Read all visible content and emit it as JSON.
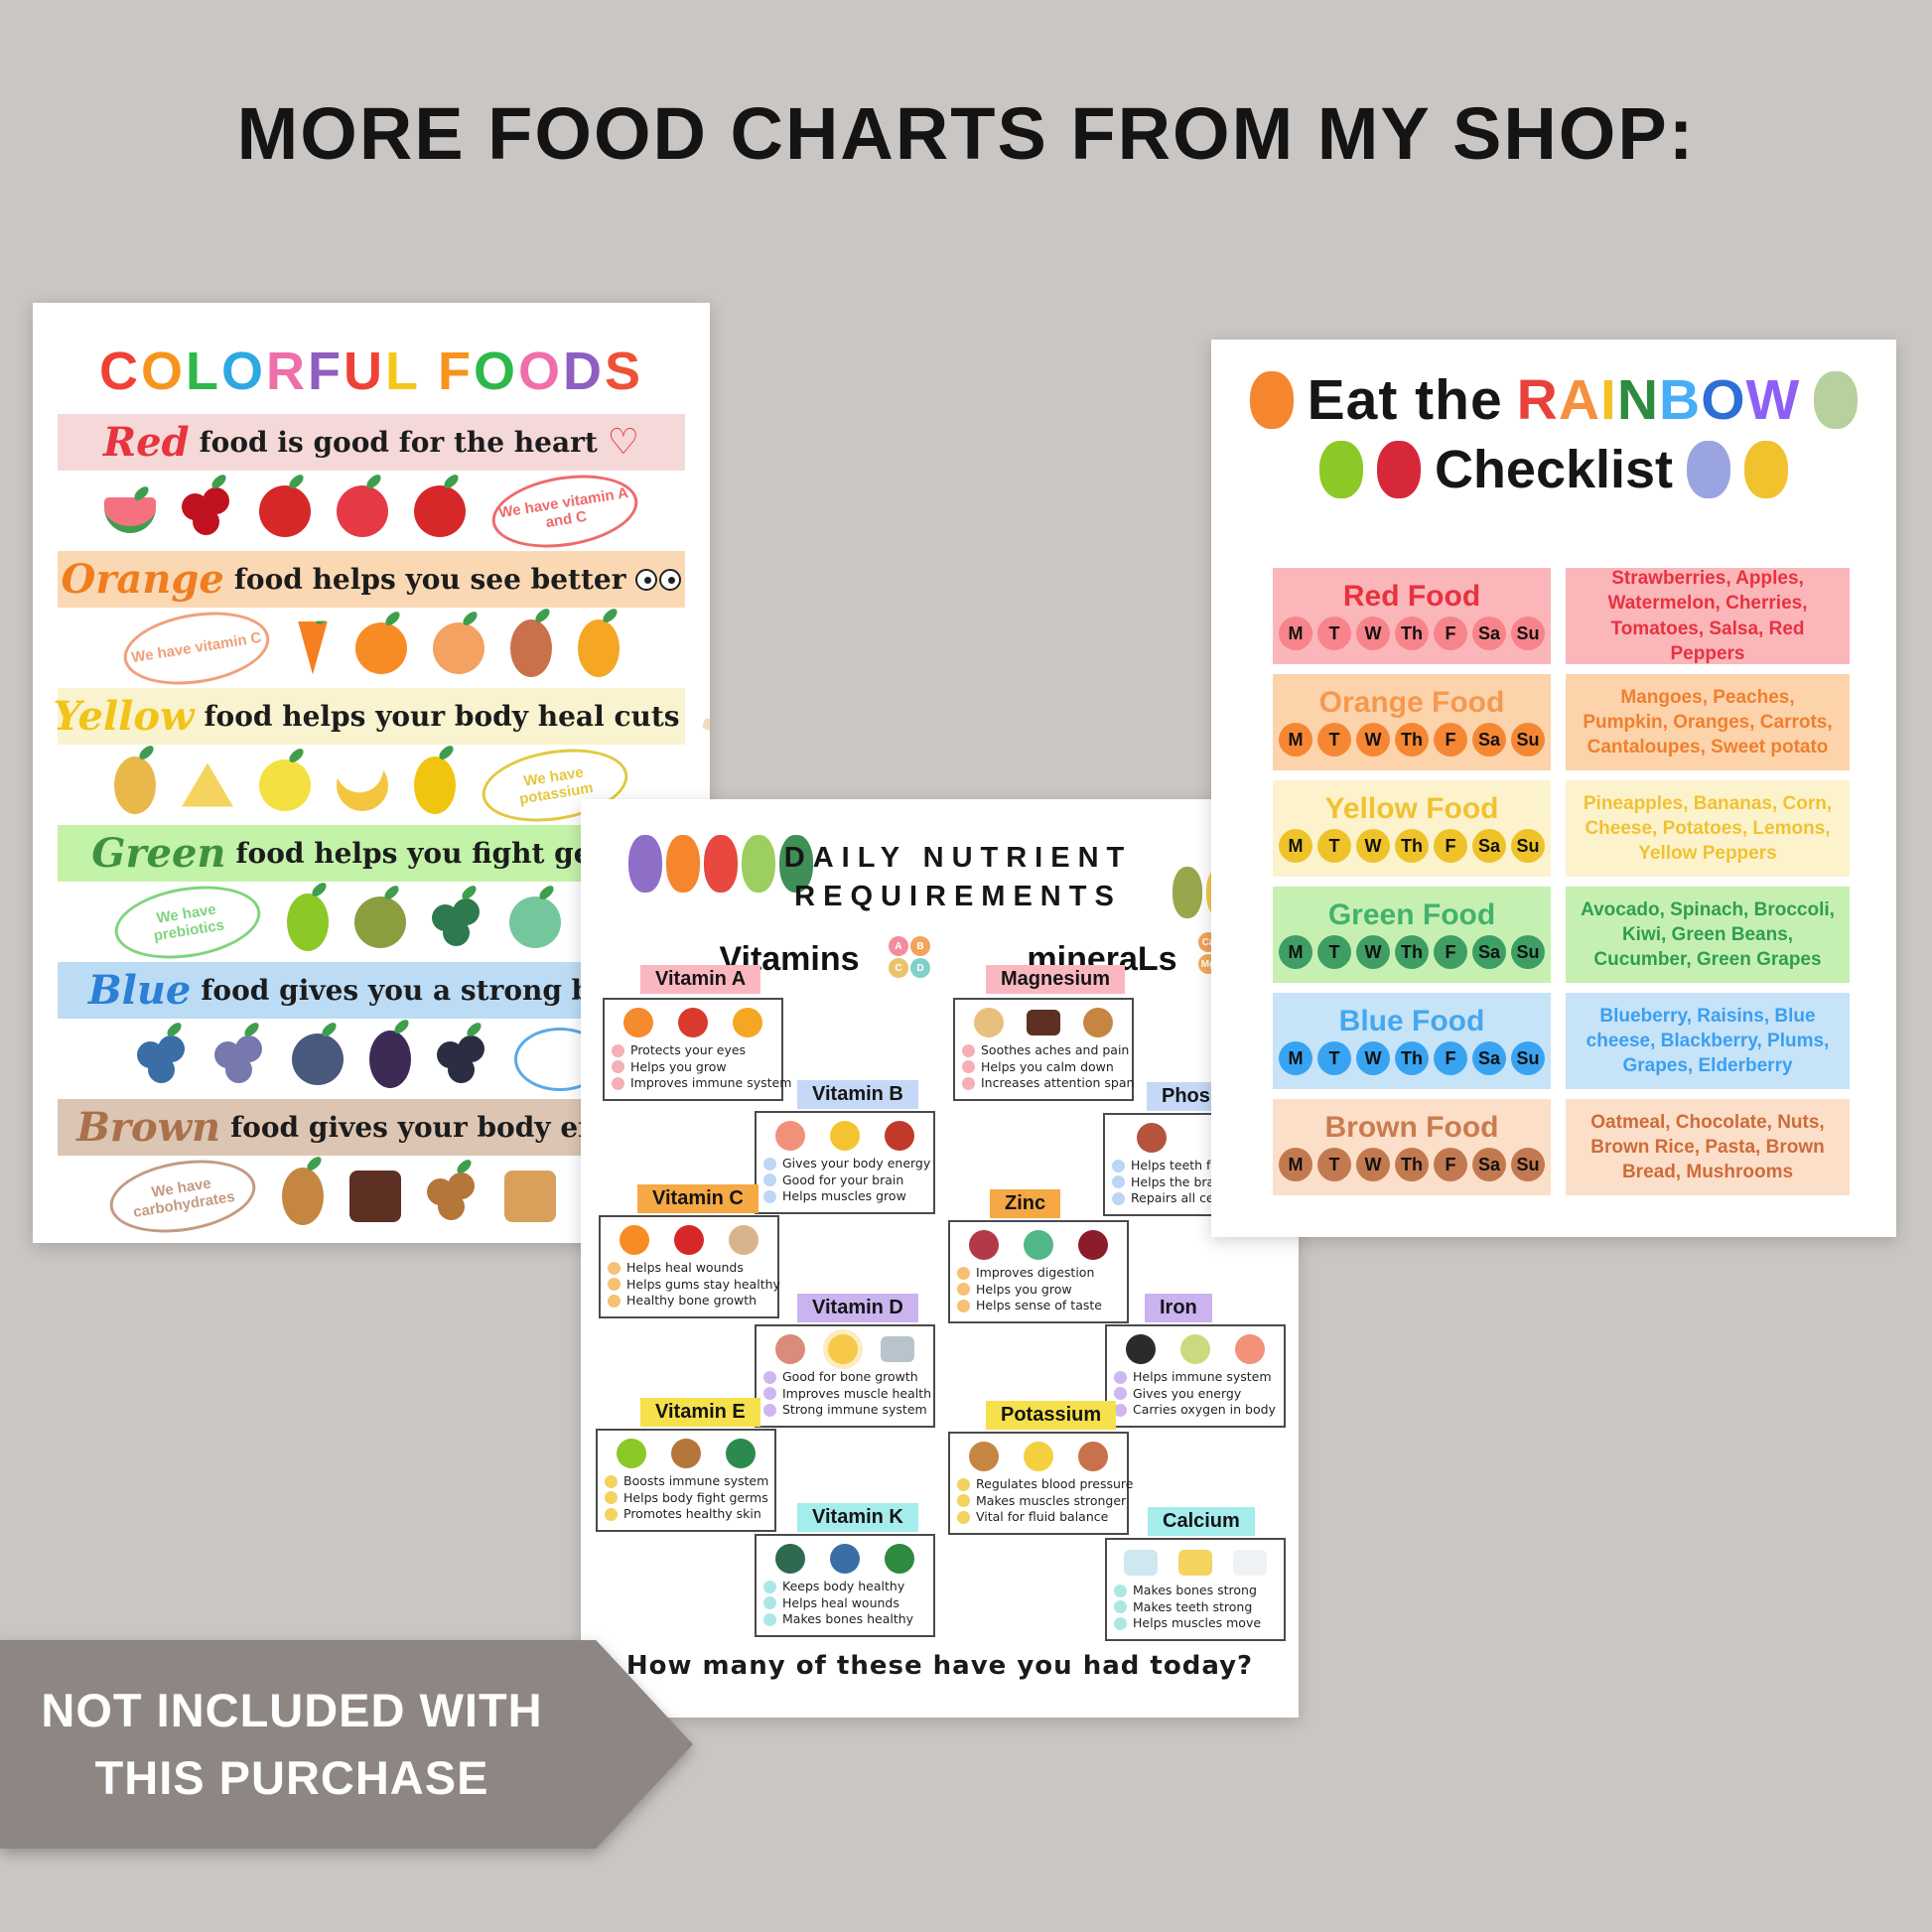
{
  "page_title": "MORE FOOD CHARTS FROM MY SHOP:",
  "background_color": "#cac6c3",
  "banner": {
    "line1": "NOT INCLUDED WITH",
    "line2": "THIS PURCHASE",
    "bg": "#8e8682",
    "text_color": "#ffffff"
  },
  "colorful_foods_poster": {
    "title": "COLORFUL FOODS",
    "title_letter_colors": [
      "#ef4136",
      "#f7941d",
      "#2eb84a",
      "#2da9e1",
      "#f06eaa",
      "#8e5fc1",
      "#ef4136",
      "#f5c71a",
      "#f7941d",
      "#2eb84a",
      "#f06eaa",
      "#8e5fc1",
      "#ef5136"
    ],
    "rows": [
      {
        "id": "red",
        "word": "Red",
        "word_color": "#e8343f",
        "strip_bg": "#f4d9d8",
        "sentence": "food is good for the heart",
        "suffix_icon": "heart-outline-icon",
        "bubble": {
          "text": "We have vitamin A and C",
          "side": "right",
          "color": "#ef6a6a"
        },
        "foods": [
          {
            "name": "watermelon",
            "color": "#f4717f",
            "shape": "half"
          },
          {
            "name": "cherries",
            "color": "#c1121f",
            "shape": "cluster"
          },
          {
            "name": "apple",
            "color": "#d62828",
            "shape": "circle"
          },
          {
            "name": "tomato",
            "color": "#e63946",
            "shape": "circle"
          },
          {
            "name": "red-pepper",
            "color": "#d62828",
            "shape": "circle"
          }
        ]
      },
      {
        "id": "orange",
        "word": "Orange",
        "word_color": "#f07d1f",
        "strip_bg": "#fbd8b4",
        "sentence": "food helps you see better",
        "suffix_icon": "eyes-icon",
        "bubble": {
          "text": "We have vitamin C",
          "side": "left",
          "color": "#f0a07a"
        },
        "foods": [
          {
            "name": "carrot",
            "color": "#f77f1f",
            "shape": "carrot"
          },
          {
            "name": "orange",
            "color": "#f88c24",
            "shape": "circle"
          },
          {
            "name": "peach",
            "color": "#f4a261",
            "shape": "circle"
          },
          {
            "name": "sweet-potato",
            "color": "#c9714a",
            "shape": "oval"
          },
          {
            "name": "mango",
            "color": "#f5a623",
            "shape": "oval"
          }
        ]
      },
      {
        "id": "yellow",
        "word": "Yellow",
        "word_color": "#f2c318",
        "strip_bg": "#faf3d0",
        "sentence": "food helps your body heal cuts",
        "suffix_icon": "bandage-icon",
        "bubble": {
          "text": "We have potassium",
          "side": "right",
          "color": "#e3c83f"
        },
        "foods": [
          {
            "name": "pineapple",
            "color": "#e9b84a",
            "shape": "oval"
          },
          {
            "name": "cheese",
            "color": "#f4d35e",
            "shape": "triangle"
          },
          {
            "name": "lemon",
            "color": "#f5e042",
            "shape": "circle"
          },
          {
            "name": "bananas",
            "color": "#f4c63f",
            "shape": "crescent"
          },
          {
            "name": "corn",
            "color": "#f1c40f",
            "shape": "oval"
          }
        ]
      },
      {
        "id": "green",
        "word": "Green",
        "word_color": "#3f9142",
        "strip_bg": "#c3f2a9",
        "sentence": "food helps you fight germs",
        "suffix_icon": null,
        "bubble": {
          "text": "We have prebiotics",
          "side": "left",
          "color": "#7fd47f"
        },
        "foods": [
          {
            "name": "avocado",
            "color": "#8ac926",
            "shape": "oval"
          },
          {
            "name": "kiwi",
            "color": "#8a9d3f",
            "shape": "circle"
          },
          {
            "name": "broccoli",
            "color": "#2d7a4f",
            "shape": "cluster"
          },
          {
            "name": "cucumber",
            "color": "#74c69d",
            "shape": "circle"
          },
          {
            "name": "peas",
            "color": "#40916c",
            "shape": "oval"
          }
        ]
      },
      {
        "id": "blue",
        "word": "Blue",
        "word_color": "#2b7fd4",
        "strip_bg": "#bcdcf5",
        "sentence": "food gives you a strong brain",
        "suffix_icon": null,
        "cut_bubble": true,
        "foods": [
          {
            "name": "blueberries",
            "color": "#3a6ea5",
            "shape": "cluster"
          },
          {
            "name": "grapes",
            "color": "#7678ae",
            "shape": "cluster"
          },
          {
            "name": "plum",
            "color": "#49597e",
            "shape": "circle"
          },
          {
            "name": "eggplant",
            "color": "#3d2b56",
            "shape": "oval"
          },
          {
            "name": "blackberry",
            "color": "#2b2d42",
            "shape": "cluster"
          }
        ]
      },
      {
        "id": "brown",
        "word": "Brown",
        "word_color": "#a9714b",
        "strip_bg": "#dcc5b2",
        "sentence": "food gives your body energy",
        "suffix_icon": null,
        "bubble": {
          "text": "We have carbohydrates",
          "side": "left",
          "color": "#c49a82"
        },
        "foods": [
          {
            "name": "potato",
            "color": "#c68642",
            "shape": "oval"
          },
          {
            "name": "chocolate",
            "color": "#5e3023",
            "shape": "square"
          },
          {
            "name": "almonds",
            "color": "#b5763a",
            "shape": "cluster"
          },
          {
            "name": "bread",
            "color": "#d9a05b",
            "shape": "square"
          },
          {
            "name": "mushroom",
            "color": "#a97142",
            "shape": "circle"
          }
        ]
      }
    ]
  },
  "nutrient_poster": {
    "title_line1": "DAILY NUTRIENT",
    "title_line2": "REQUIREMENTS",
    "vitamins_heading": "Vitamins",
    "minerals_heading": "mineraLs",
    "vitamin_badges": [
      {
        "label": "A",
        "color": "#f48ca0"
      },
      {
        "label": "B",
        "color": "#f5a25a"
      },
      {
        "label": "C",
        "color": "#e9c46a"
      },
      {
        "label": "D",
        "color": "#7fd1c9"
      }
    ],
    "mineral_badges": [
      {
        "label": "Ca",
        "color": "#f5a25a"
      },
      {
        "label": "Zn",
        "color": "#f5913e"
      },
      {
        "label": "Mg",
        "color": "#f5a85a"
      }
    ],
    "header_characters_left": [
      {
        "name": "eggplant",
        "color": "#8e6fc8"
      },
      {
        "name": "carrot",
        "color": "#f5862e"
      },
      {
        "name": "tomato",
        "color": "#e8483f"
      },
      {
        "name": "cabbage",
        "color": "#9ccf5f"
      },
      {
        "name": "broccoli",
        "color": "#3f8f56"
      }
    ],
    "header_characters_right": [
      {
        "name": "kiwi",
        "color": "#97a84c"
      },
      {
        "name": "banana",
        "color": "#f2c94c"
      },
      {
        "name": "blueberries",
        "color": "#6f7fd4"
      }
    ],
    "footer": "How many of these have you had today?",
    "cards": [
      {
        "id": "vitamin-a",
        "label": "Vitamin A",
        "label_bg": "#fbb7c0",
        "bullet_color": "#f6aeb9",
        "foods": [
          {
            "name": "carrot",
            "color": "#f58a2e"
          },
          {
            "name": "tomato",
            "color": "#d93a2b"
          },
          {
            "name": "mango",
            "color": "#f5a623"
          }
        ],
        "bullets": [
          "Protects your eyes",
          "Helps you grow",
          "Improves immune system"
        ]
      },
      {
        "id": "vitamin-b",
        "label": "Vitamin B",
        "label_bg": "#c5d8f7",
        "bullet_color": "#bcd6f5",
        "foods": [
          {
            "name": "salmon",
            "color": "#f2917a"
          },
          {
            "name": "fried-egg",
            "color": "#f4c430"
          },
          {
            "name": "steak",
            "color": "#c0392b"
          }
        ],
        "bullets": [
          "Gives your body energy",
          "Good for your brain",
          "Helps muscles grow"
        ]
      },
      {
        "id": "vitamin-c",
        "label": "Vitamin C",
        "label_bg": "#f5a843",
        "bullet_color": "#f6c174",
        "foods": [
          {
            "name": "orange",
            "color": "#f88c24"
          },
          {
            "name": "red-pepper",
            "color": "#d62828"
          },
          {
            "name": "cantaloupe",
            "color": "#d9b38c"
          }
        ],
        "bullets": [
          "Helps heal wounds",
          "Helps gums stay healthy",
          "Healthy bone growth"
        ]
      },
      {
        "id": "vitamin-d",
        "label": "Vitamin D",
        "label_bg": "#cbb3f0",
        "bullet_color": "#cdb6f2",
        "foods": [
          {
            "name": "mushrooms",
            "color": "#d98c7a"
          },
          {
            "name": "sun",
            "color": "#f7c948"
          },
          {
            "name": "tuna-can",
            "color": "#b8c4cc"
          }
        ],
        "bullets": [
          "Good for bone growth",
          "Improves muscle health",
          "Strong immune system"
        ]
      },
      {
        "id": "vitamin-e",
        "label": "Vitamin E",
        "label_bg": "#f6e04b",
        "bullet_color": "#f1d35e",
        "foods": [
          {
            "name": "avocado",
            "color": "#8ac926"
          },
          {
            "name": "almond",
            "color": "#b5763a"
          },
          {
            "name": "spinach",
            "color": "#2d8a4e"
          }
        ],
        "bullets": [
          "Boosts immune system",
          "Helps body fight germs",
          "Promotes healthy skin"
        ]
      },
      {
        "id": "vitamin-k",
        "label": "Vitamin K",
        "label_bg": "#a5ecec",
        "bullet_color": "#a9e8e6",
        "foods": [
          {
            "name": "broccoli",
            "color": "#2d6a4f"
          },
          {
            "name": "blueberries",
            "color": "#3a6ea5"
          },
          {
            "name": "kale",
            "color": "#2d8a3e"
          }
        ],
        "bullets": [
          "Keeps body healthy",
          "Helps heal wounds",
          "Makes bones healthy"
        ]
      },
      {
        "id": "magnesium",
        "label": "Magnesium",
        "label_bg": "#fbb7c0",
        "bullet_color": "#f6aeb9",
        "foods": [
          {
            "name": "cashews",
            "color": "#e8c07d"
          },
          {
            "name": "chocolate",
            "color": "#5e3023"
          },
          {
            "name": "peanuts",
            "color": "#c68642"
          }
        ],
        "bullets": [
          "Soothes aches and pain",
          "Helps you calm down",
          "Increases attention span"
        ]
      },
      {
        "id": "phosphorus",
        "label": "Phospho",
        "label_bg": "#c5d8f7",
        "bullet_color": "#bcd6f5",
        "truncated": true,
        "foods": [
          {
            "name": "chicken-leg",
            "color": "#b5533c"
          },
          {
            "name": "tofu",
            "color": "#cfd8e8"
          }
        ],
        "bullets": [
          "Helps teeth fo",
          "Helps the brai",
          "Repairs all cel"
        ]
      },
      {
        "id": "zinc",
        "label": "Zinc",
        "label_bg": "#f5a843",
        "bullet_color": "#f6c174",
        "foods": [
          {
            "name": "steak",
            "color": "#b23a48"
          },
          {
            "name": "peas",
            "color": "#52b788"
          },
          {
            "name": "kidney-beans",
            "color": "#8c1c2b"
          }
        ],
        "bullets": [
          "Improves digestion",
          "Helps you grow",
          "Helps sense of taste"
        ]
      },
      {
        "id": "iron",
        "label": "Iron",
        "label_bg": "#cbb3f0",
        "bullet_color": "#cdb6f2",
        "foods": [
          {
            "name": "black-beans",
            "color": "#2b2b2b"
          },
          {
            "name": "soybeans",
            "color": "#cdd97f"
          },
          {
            "name": "shrimp",
            "color": "#f4917a"
          }
        ],
        "bullets": [
          "Helps immune system",
          "Gives you energy",
          "Carries oxygen in body"
        ]
      },
      {
        "id": "potassium",
        "label": "Potassium",
        "label_bg": "#f6e04b",
        "bullet_color": "#f1d35e",
        "foods": [
          {
            "name": "potato",
            "color": "#c68642"
          },
          {
            "name": "banana",
            "color": "#f4d03f"
          },
          {
            "name": "sweet-potato",
            "color": "#c9714a"
          }
        ],
        "bullets": [
          "Regulates blood pressure",
          "Makes muscles stronger",
          "Vital for fluid balance"
        ]
      },
      {
        "id": "calcium",
        "label": "Calcium",
        "label_bg": "#a5ecec",
        "bullet_color": "#a9e8e6",
        "foods": [
          {
            "name": "yogurt",
            "color": "#cfe8ef"
          },
          {
            "name": "cheese",
            "color": "#f4d35e"
          },
          {
            "name": "milk",
            "color": "#eef2f5"
          }
        ],
        "bullets": [
          "Makes bones strong",
          "Makes teeth strong",
          "Helps muscles move"
        ]
      }
    ]
  },
  "rainbow_poster": {
    "title_prefix": "Eat the",
    "rainbow_word": "RAINBOW",
    "rainbow_letter_colors": [
      "#e8413c",
      "#f5913e",
      "#f2c027",
      "#2e8b3f",
      "#45aef5",
      "#2d6fd4",
      "#8e5ff5"
    ],
    "title_line2": "Checklist",
    "title_fruits_left": [
      {
        "name": "carrot",
        "color": "#f5862e"
      }
    ],
    "title_fruits_right": [
      {
        "name": "pear",
        "color": "#b8cf9e"
      }
    ],
    "title2_fruits_left": [
      {
        "name": "avocado",
        "color": "#8ac926"
      },
      {
        "name": "cherry",
        "color": "#d62839"
      }
    ],
    "title2_fruits_right": [
      {
        "name": "blueberries",
        "color": "#9aa4e0"
      },
      {
        "name": "pineapple",
        "color": "#f2c12e"
      }
    ],
    "days": [
      "M",
      "T",
      "W",
      "Th",
      "F",
      "Sa",
      "Su"
    ],
    "rows": [
      {
        "id": "red",
        "label": "Red Food",
        "bg": "#fbb6ba",
        "label_color": "#e8323e",
        "circle_color": "#f8848b",
        "foods_text": "Strawberries, Apples, Watermelon, Cherries, Tomatoes, Salsa, Red Peppers",
        "text_color": "#e8323e"
      },
      {
        "id": "orange",
        "label": "Orange Food",
        "bg": "#fcd3ab",
        "label_color": "#f5994f",
        "circle_color": "#f58733",
        "foods_text": "Mangoes, Peaches, Pumpkin, Oranges, Carrots, Cantaloupes, Sweet potato",
        "text_color": "#f07f2e"
      },
      {
        "id": "yellow",
        "label": "Yellow Food",
        "bg": "#fcf3cd",
        "label_color": "#f0c233",
        "circle_color": "#eec32a",
        "foods_text": "Pineapples, Bananas, Corn, Cheese, Potatoes, Lemons, Yellow Peppers",
        "text_color": "#f0c233"
      },
      {
        "id": "green",
        "label": "Green Food",
        "bg": "#c6f0b2",
        "label_color": "#43b26d",
        "circle_color": "#3f9e63",
        "foods_text": "Avocado, Spinach, Broccoli, Kiwi, Green Beans, Cucumber, Green Grapes",
        "text_color": "#2e9e52"
      },
      {
        "id": "blue",
        "label": "Blue Food",
        "bg": "#c6e3f8",
        "label_color": "#45a7f0",
        "circle_color": "#38a3f1",
        "foods_text": "Blueberry, Raisins, Blue cheese, Blackberry, Plums, Grapes, Elderberry",
        "text_color": "#3b9ff0"
      },
      {
        "id": "brown",
        "label": "Brown Food",
        "bg": "#fbdfc9",
        "label_color": "#c97c50",
        "circle_color": "#c37950",
        "foods_text": "Oatmeal, Chocolate, Nuts, Brown Rice, Pasta, Brown Bread, Mushrooms",
        "text_color": "#cf6b3a"
      }
    ]
  }
}
